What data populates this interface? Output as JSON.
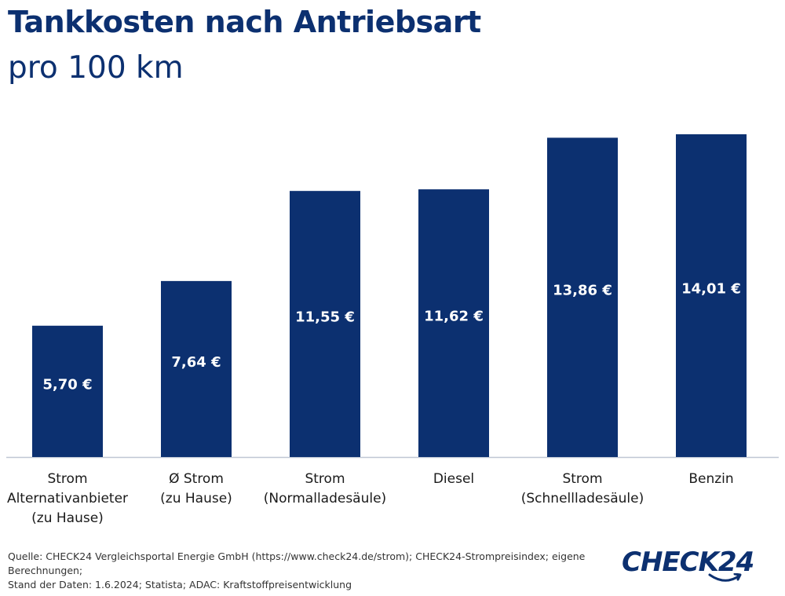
{
  "header": {
    "title": "Tankkosten nach Antriebsart",
    "subtitle": "pro 100 km"
  },
  "colors": {
    "bar": "#0c3070",
    "axis": "#bfc7d4",
    "text": "#1a1a1a"
  },
  "chart_data": {
    "type": "bar",
    "title": "Tankkosten nach Antriebsart",
    "subtitle": "pro 100 km",
    "categories": [
      [
        "Strom",
        "Alternativanbieter",
        "(zu Hause)"
      ],
      [
        "Ø Strom",
        "(zu Hause)"
      ],
      [
        "Strom",
        "(Normalladesäule)"
      ],
      [
        "Diesel"
      ],
      [
        "Strom",
        "(Schnellladesäule)"
      ],
      [
        "Benzin"
      ]
    ],
    "values": [
      5.7,
      7.64,
      11.55,
      11.62,
      13.86,
      14.01
    ],
    "value_labels": [
      "5,70 €",
      "7,64 €",
      "11,55 €",
      "11,62 €",
      "13,86 €",
      "14,01 €"
    ],
    "ylim": [
      0,
      14.01
    ],
    "grid": false,
    "legend": "none"
  },
  "footer": {
    "source_line1": "Quelle: CHECK24 Vergleichsportal Energie GmbH (https://www.check24.de/strom); CHECK24-Strompreisindex; eigene Berechnungen;",
    "source_line2": "Stand der Daten: 1.6.2024; Statista; ADAC: Kraftstoffpreisentwicklung",
    "logo_text": "CHECK24"
  }
}
